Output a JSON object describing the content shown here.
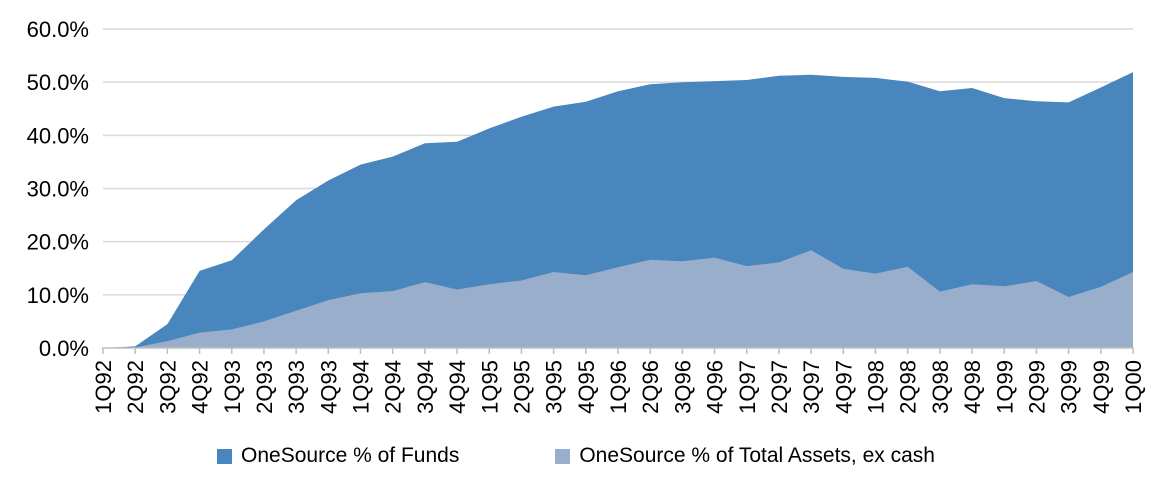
{
  "chart_data": {
    "type": "area",
    "title": "",
    "xlabel": "",
    "ylabel": "",
    "categories": [
      "1Q92",
      "2Q92",
      "3Q92",
      "4Q92",
      "1Q93",
      "2Q93",
      "3Q93",
      "4Q93",
      "1Q94",
      "2Q94",
      "3Q94",
      "4Q94",
      "1Q95",
      "2Q95",
      "3Q95",
      "4Q95",
      "1Q96",
      "2Q96",
      "3Q96",
      "4Q96",
      "1Q97",
      "2Q97",
      "3Q97",
      "4Q97",
      "1Q98",
      "2Q98",
      "3Q98",
      "4Q98",
      "1Q99",
      "2Q99",
      "3Q99",
      "4Q99",
      "1Q00"
    ],
    "series": [
      {
        "name": "OneSource % of Funds",
        "color": "#4a86be",
        "values": [
          0.0,
          0.3,
          4.5,
          14.5,
          16.5,
          22.3,
          27.8,
          31.5,
          34.5,
          36.0,
          38.5,
          38.8,
          41.3,
          43.5,
          45.4,
          46.3,
          48.3,
          49.6,
          50.0,
          50.2,
          50.4,
          51.2,
          51.4,
          51.0,
          50.8,
          50.1,
          48.3,
          48.9,
          47.0,
          46.4,
          46.2,
          49.0,
          51.9
        ]
      },
      {
        "name": "OneSource % of Total Assets, ex cash",
        "color": "#98aecb",
        "values": [
          0.0,
          0.1,
          1.3,
          2.9,
          3.5,
          5.0,
          7.0,
          9.0,
          10.3,
          10.7,
          12.4,
          11.0,
          12.0,
          12.7,
          14.3,
          13.7,
          15.2,
          16.6,
          16.3,
          17.0,
          15.4,
          16.1,
          18.4,
          14.9,
          14.0,
          15.3,
          10.6,
          12.0,
          11.6,
          12.6,
          9.6,
          11.5,
          14.3
        ]
      }
    ],
    "ylim": [
      0,
      60
    ],
    "ytick_step": 10,
    "ytick_suffix": "%",
    "ytick_decimals": 1,
    "grid": true,
    "legend_position": "bottom",
    "overlap_mode": "overlapping (not stacked)"
  },
  "style": {
    "gridline_color": "#d9d9d9",
    "axis_color": "#bfbfbf",
    "tick_color": "#bfbfbf",
    "label_color": "#000000"
  }
}
